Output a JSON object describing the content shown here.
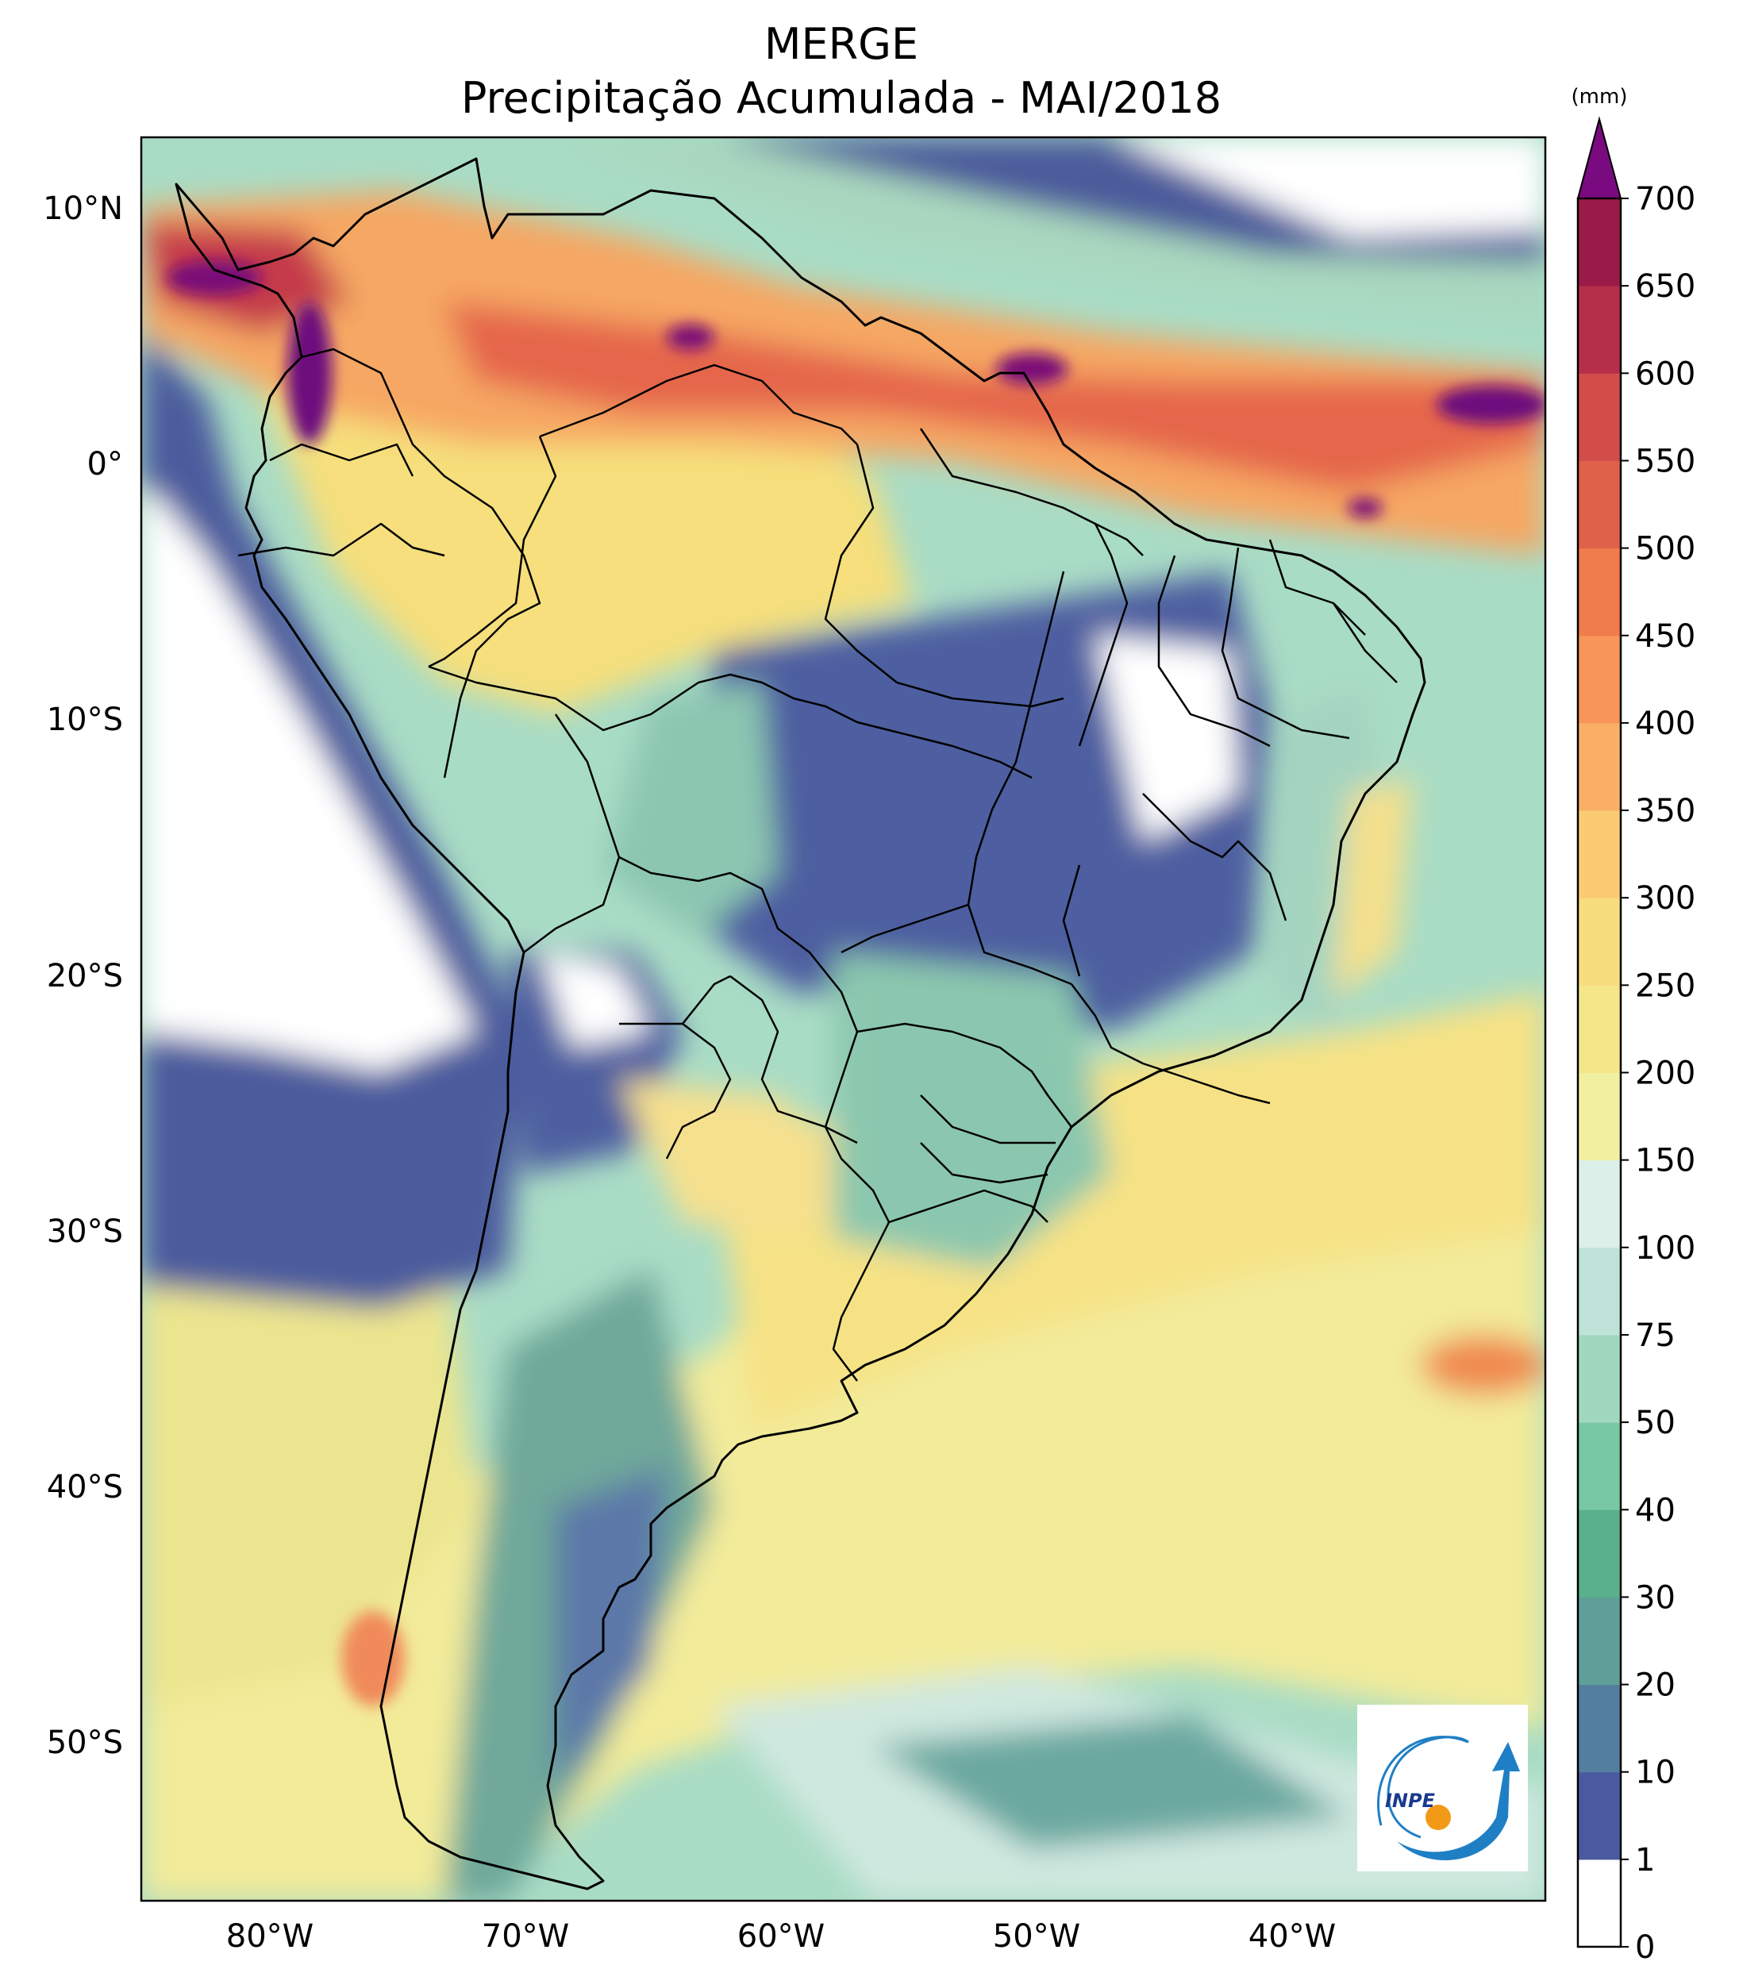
{
  "title": {
    "line1": "MERGE",
    "line2": "Precipitação Acumulada - MAI/2018"
  },
  "map": {
    "type": "choropleth precipitation map",
    "region": "South America",
    "lon_range": [
      -85,
      -30
    ],
    "lat_range": [
      -56,
      12.5
    ],
    "lat_ticks": [
      {
        "value": 10,
        "label": "10°N"
      },
      {
        "value": 0,
        "label": "0°"
      },
      {
        "value": -10,
        "label": "10°S"
      },
      {
        "value": -20,
        "label": "20°S"
      },
      {
        "value": -30,
        "label": "30°S"
      },
      {
        "value": -40,
        "label": "40°S"
      },
      {
        "value": -50,
        "label": "50°S"
      }
    ],
    "lon_ticks": [
      {
        "value": -80,
        "label": "80°W"
      },
      {
        "value": -70,
        "label": "70°W"
      },
      {
        "value": -60,
        "label": "60°W"
      },
      {
        "value": -50,
        "label": "50°W"
      },
      {
        "value": -40,
        "label": "40°W"
      }
    ]
  },
  "colorbar": {
    "unit": "(mm)",
    "levels": [
      {
        "label": "0",
        "color": "#ffffff"
      },
      {
        "label": "1",
        "color": "#4a5aa0"
      },
      {
        "label": "10",
        "color": "#547ea0"
      },
      {
        "label": "20",
        "color": "#5f9f97"
      },
      {
        "label": "30",
        "color": "#5aaf8c"
      },
      {
        "label": "40",
        "color": "#78c9a3"
      },
      {
        "label": "50",
        "color": "#a0d8bf"
      },
      {
        "label": "75",
        "color": "#bfe3d8"
      },
      {
        "label": "100",
        "color": "#dcefe9"
      },
      {
        "label": "150",
        "color": "#f0f0a0"
      },
      {
        "label": "200",
        "color": "#f5e68a"
      },
      {
        "label": "250",
        "color": "#f8dd7e"
      },
      {
        "label": "300",
        "color": "#fbcb73"
      },
      {
        "label": "350",
        "color": "#f9b066"
      },
      {
        "label": "400",
        "color": "#f79658"
      },
      {
        "label": "450",
        "color": "#f07b4c"
      },
      {
        "label": "500",
        "color": "#e0614a"
      },
      {
        "label": "550",
        "color": "#d24c4a"
      },
      {
        "label": "600",
        "color": "#b52f4a"
      },
      {
        "label": "650",
        "color": "#9a1b48"
      },
      {
        "label": "700",
        "color": "#6d0c7e"
      }
    ],
    "extend_color": "#7a0a80"
  },
  "logo": {
    "text": "INPE",
    "accent": "#1f7fc4",
    "dot": "#f29a18"
  }
}
